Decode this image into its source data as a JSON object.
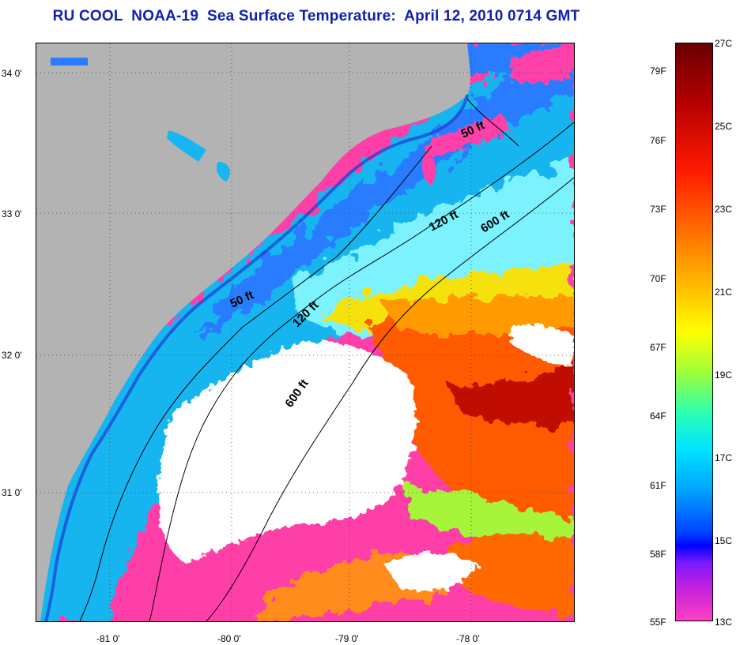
{
  "title": "RU COOL  NOAA-19  Sea Surface Temperature:  April 12, 2010 0714 GMT",
  "axes": {
    "latitude_labels": [
      "34 0'",
      "33 0'",
      "32 0'",
      "31 0'"
    ],
    "longitude_labels": [
      "-81 0'",
      "-80 0'",
      "-79 0'",
      "-78 0'"
    ]
  },
  "contours": {
    "labels": [
      "50 ft",
      "120 ft",
      "600 ft",
      "50 ft",
      "120 ft",
      "600 ft"
    ]
  },
  "colorbar": {
    "fahrenheit": [
      "79F",
      "76F",
      "73F",
      "70F",
      "67F",
      "64F",
      "61F",
      "58F",
      "55F"
    ],
    "celsius": [
      "27C",
      "25C",
      "23C",
      "21C",
      "19C",
      "17C",
      "15C",
      "13C"
    ]
  },
  "colors": {
    "land": "#b3b3b3",
    "cloud": "#ffffff",
    "title": "#1020b0"
  }
}
